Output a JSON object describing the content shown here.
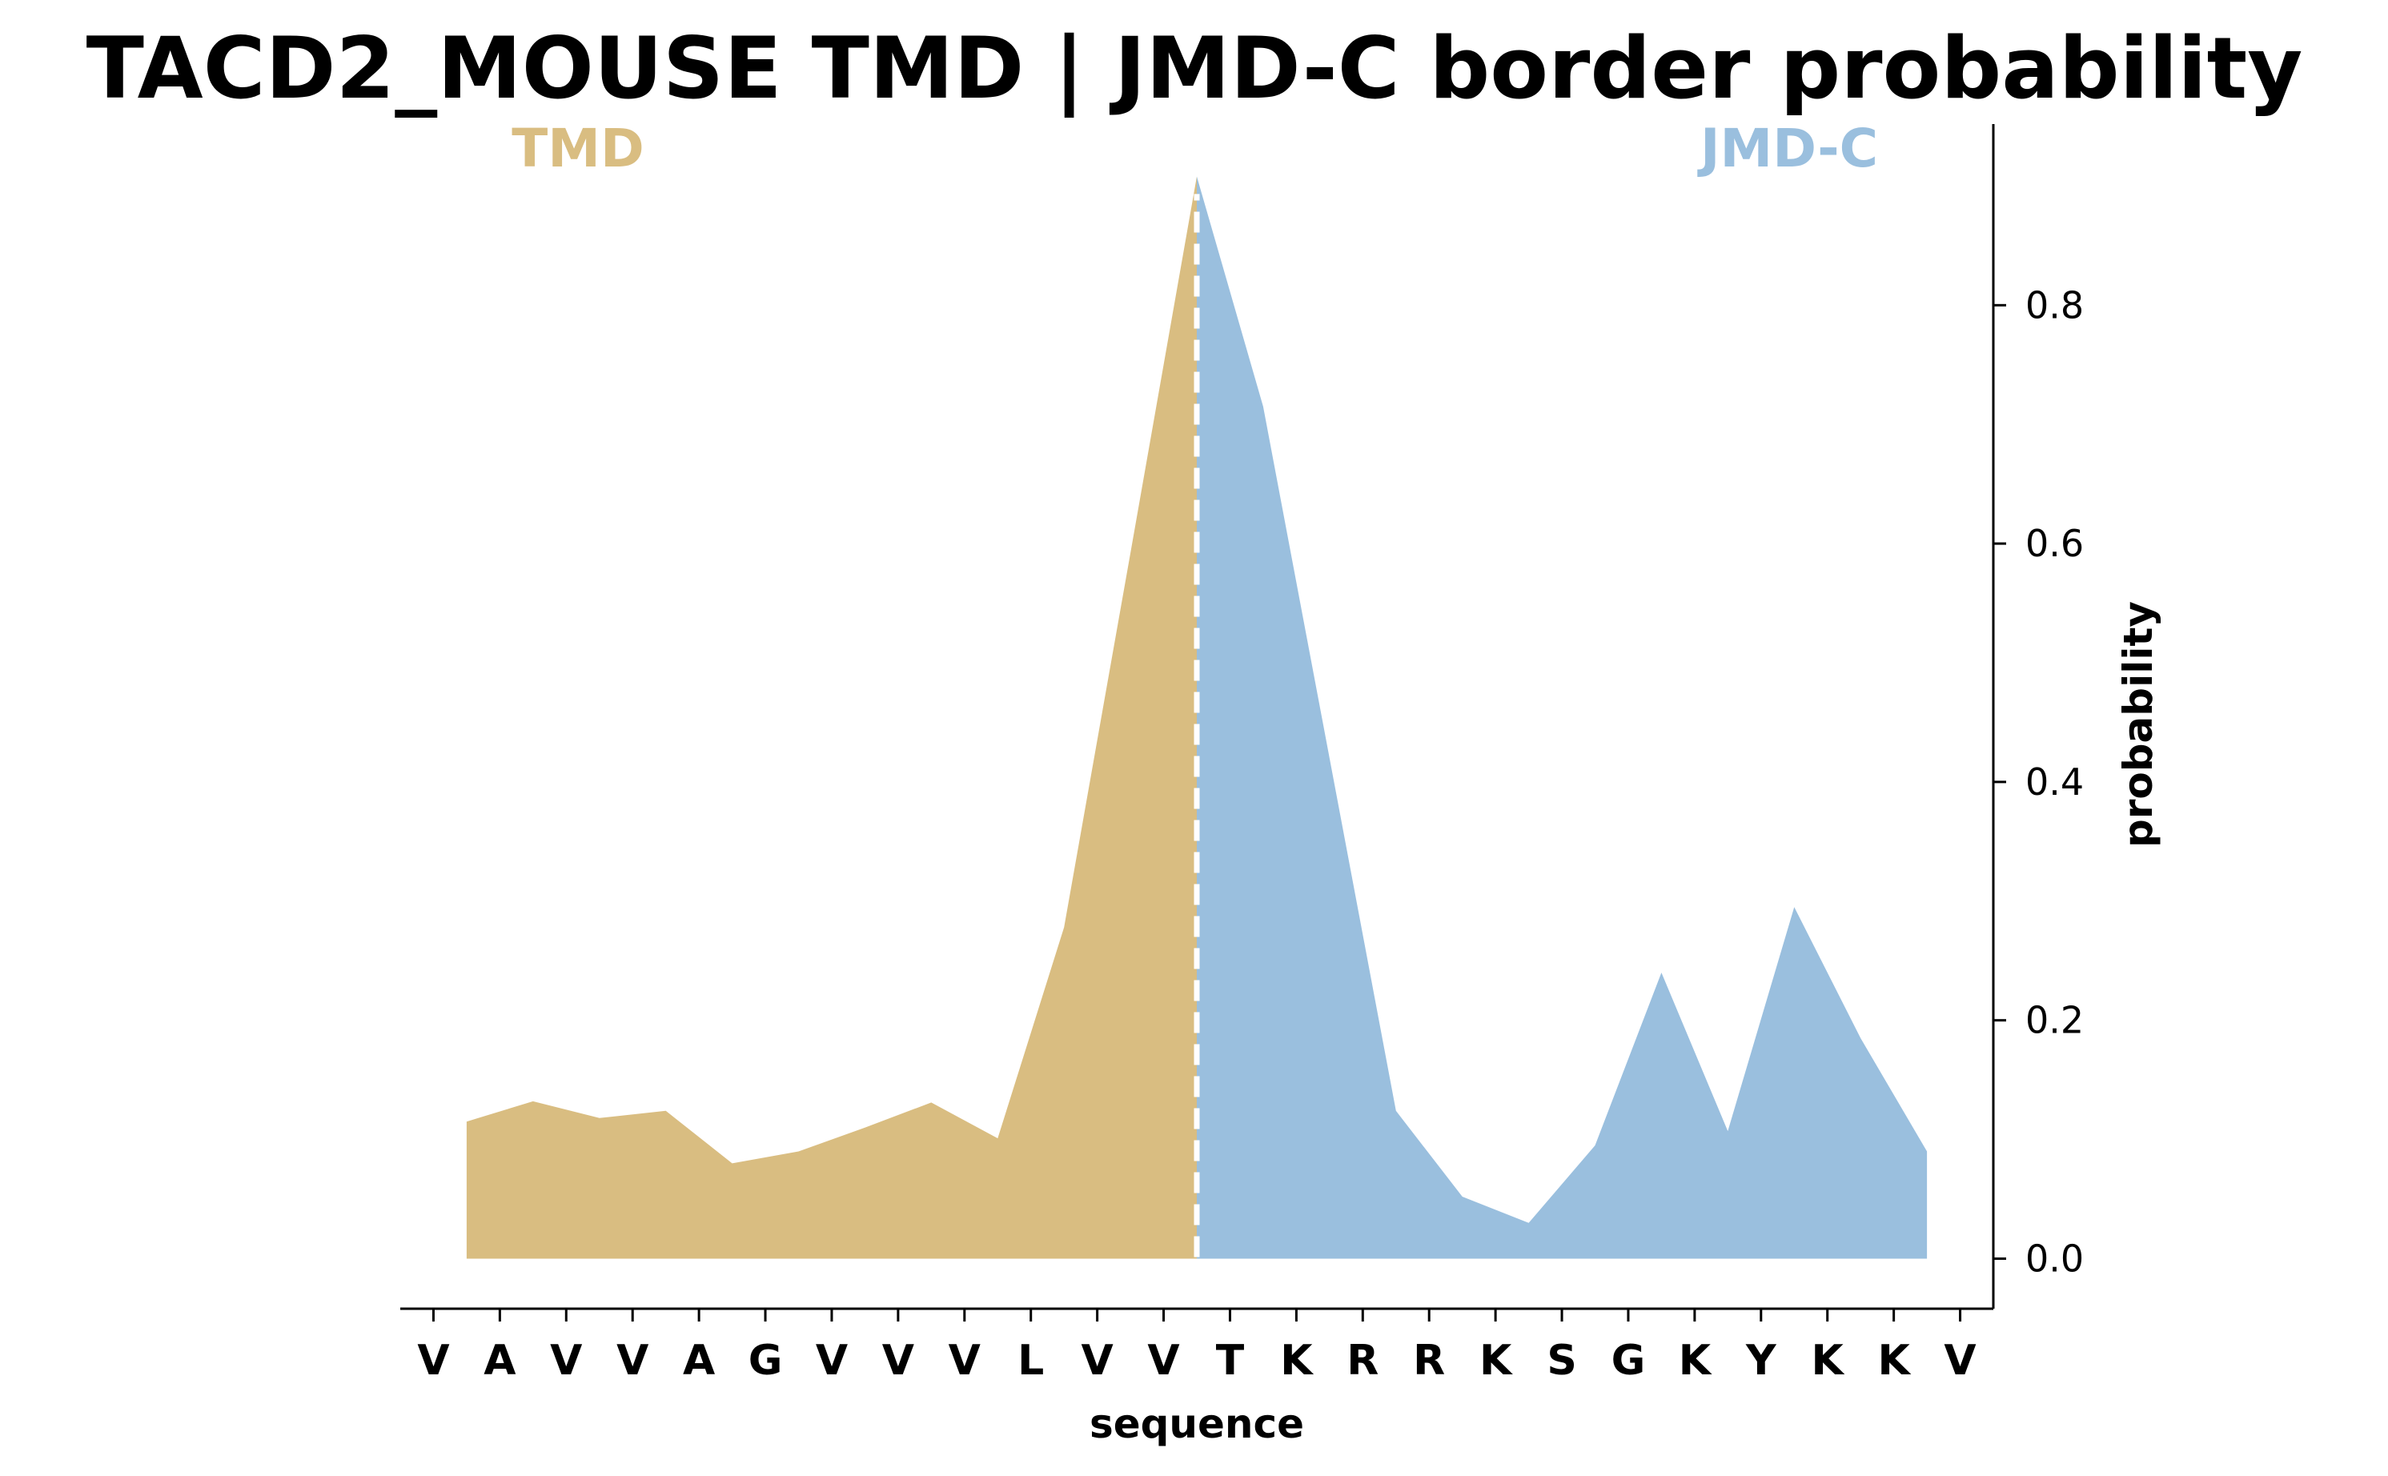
{
  "chart_data": {
    "type": "area",
    "title": "TACD2_MOUSE TMD | JMD-C border probability",
    "xlabel": "sequence",
    "ylabel": "probability",
    "categories": [
      "V",
      "A",
      "V",
      "V",
      "A",
      "G",
      "V",
      "V",
      "V",
      "L",
      "V",
      "V",
      "T",
      "K",
      "R",
      "R",
      "K",
      "S",
      "G",
      "K",
      "Y",
      "K",
      "K",
      "V"
    ],
    "ylim": [
      -0.042,
      0.952
    ],
    "xlim": [
      -0.5,
      23.5
    ],
    "yticks": [
      "0.0",
      "0.2",
      "0.4",
      "0.6",
      "0.8"
    ],
    "grid": false,
    "border_position": 11.5,
    "series": [
      {
        "name": "TMD",
        "color": "#d9bd81",
        "x": [
          0.5,
          1.5,
          2.5,
          3.5,
          4.5,
          5.5,
          6.5,
          7.5,
          8.5,
          9.5,
          10.5,
          11.5
        ],
        "y": [
          0.115,
          0.132,
          0.118,
          0.124,
          0.08,
          0.09,
          0.11,
          0.131,
          0.101,
          0.278,
          0.592,
          0.908
        ]
      },
      {
        "name": "JMD-C",
        "color": "#9abfde",
        "x": [
          11.5,
          12.5,
          13.5,
          14.5,
          15.5,
          16.5,
          17.5,
          18.5,
          19.5,
          20.5,
          21.5,
          22.5
        ],
        "y": [
          0.908,
          0.715,
          0.42,
          0.124,
          0.052,
          0.03,
          0.095,
          0.24,
          0.107,
          0.295,
          0.185,
          0.09
        ]
      }
    ]
  }
}
